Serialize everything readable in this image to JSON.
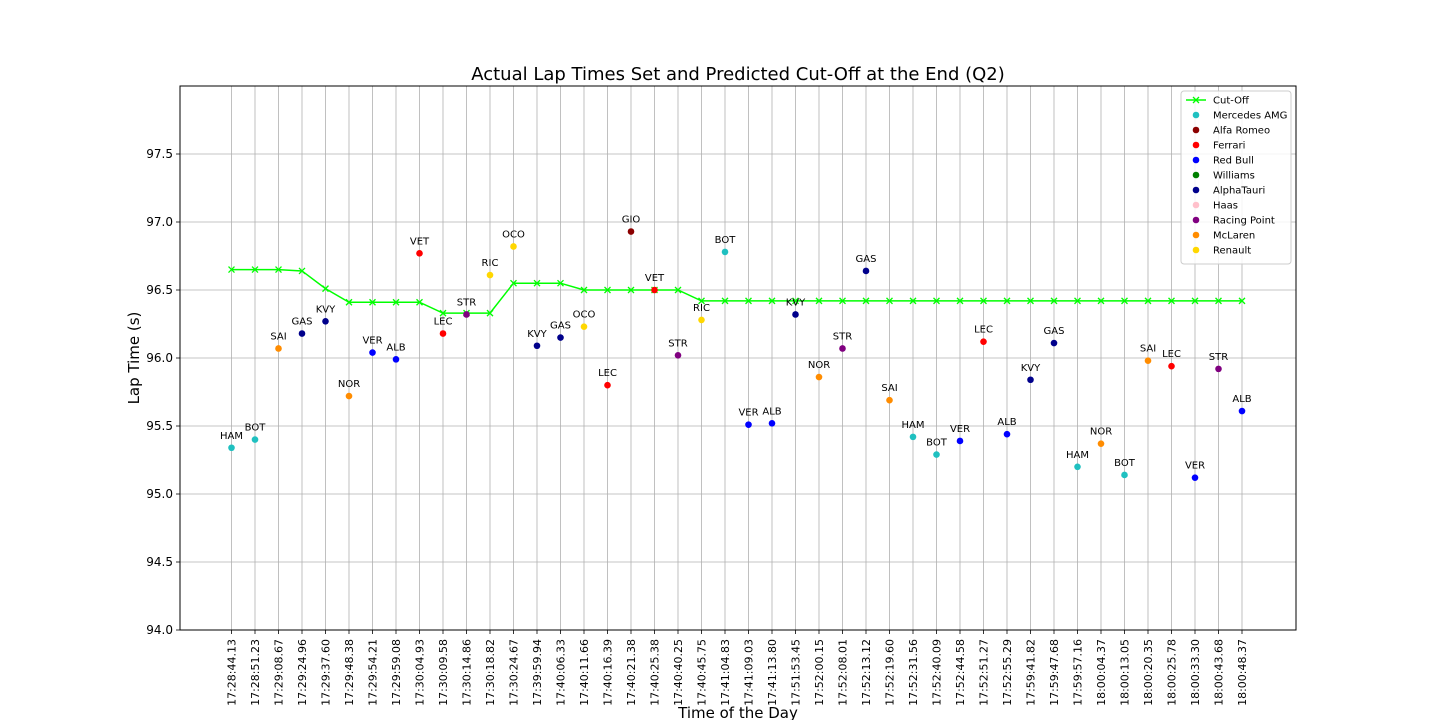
{
  "chart_data": {
    "type": "scatter",
    "title": "Actual Lap Times Set and Predicted Cut-Off at the End (Q2)",
    "xlabel": "Time of the Day",
    "ylabel": "Lap Time (s)",
    "ylim": [
      94.0,
      98.0
    ],
    "yticks": [
      "94.0",
      "94.5",
      "95.0",
      "95.5",
      "96.0",
      "96.5",
      "97.0",
      "97.5"
    ],
    "grid": true,
    "legend_position": "top-right",
    "categories": [
      "17:28:44.13",
      "17:28:51.23",
      "17:29:08.67",
      "17:29:24.96",
      "17:29:37.60",
      "17:29:48.38",
      "17:29:54.21",
      "17:29:59.08",
      "17:30:04.93",
      "17:30:09.58",
      "17:30:14.86",
      "17:30:18.82",
      "17:30:24.67",
      "17:39:59.94",
      "17:40:06.33",
      "17:40:11.66",
      "17:40:16.39",
      "17:40:21.38",
      "17:40:25.38",
      "17:40:40.25",
      "17:40:45.75",
      "17:41:04.83",
      "17:41:09.03",
      "17:41:13.80",
      "17:51:53.45",
      "17:52:00.15",
      "17:52:08.01",
      "17:52:13.12",
      "17:52:19.60",
      "17:52:31.56",
      "17:52:40.09",
      "17:52:44.58",
      "17:52:51.27",
      "17:52:55.29",
      "17:59:41.82",
      "17:59:47.68",
      "17:59:57.16",
      "18:00:04.37",
      "18:00:13.05",
      "18:00:20.35",
      "18:00:25.78",
      "18:00:33.30",
      "18:00:43.68",
      "18:00:48.37"
    ],
    "cutoff": {
      "name": "Cut-Off",
      "color": "#00ff00",
      "values": [
        96.65,
        96.65,
        96.65,
        96.64,
        96.51,
        96.41,
        96.41,
        96.41,
        96.41,
        96.33,
        96.33,
        96.33,
        96.55,
        96.55,
        96.55,
        96.5,
        96.5,
        96.5,
        96.5,
        96.5,
        96.42,
        96.42,
        96.42,
        96.42,
        96.42,
        96.42,
        96.42,
        96.42,
        96.42,
        96.42,
        96.42,
        96.42,
        96.42,
        96.42,
        96.42,
        96.42,
        96.42,
        96.42,
        96.42,
        96.42,
        96.42,
        96.42,
        96.42,
        96.42
      ]
    },
    "teams": [
      {
        "name": "Mercedes AMG",
        "color": "#1fc0c0"
      },
      {
        "name": "Alfa Romeo",
        "color": "#8b0000"
      },
      {
        "name": "Ferrari",
        "color": "#ff0000"
      },
      {
        "name": "Red Bull",
        "color": "#0000ff"
      },
      {
        "name": "Williams",
        "color": "#008000"
      },
      {
        "name": "AlphaTauri",
        "color": "#00008b"
      },
      {
        "name": "Haas",
        "color": "#ffc0cb"
      },
      {
        "name": "Racing Point",
        "color": "#800080"
      },
      {
        "name": "McLaren",
        "color": "#ff8c00"
      },
      {
        "name": "Renault",
        "color": "#ffd700"
      }
    ],
    "laps": [
      {
        "driver": "HAM",
        "team": "Mercedes AMG",
        "value": 95.34
      },
      {
        "driver": "BOT",
        "team": "Mercedes AMG",
        "value": 95.4
      },
      {
        "driver": "SAI",
        "team": "McLaren",
        "value": 96.07
      },
      {
        "driver": "GAS",
        "team": "AlphaTauri",
        "value": 96.18
      },
      {
        "driver": "KVY",
        "team": "AlphaTauri",
        "value": 96.27
      },
      {
        "driver": "NOR",
        "team": "McLaren",
        "value": 95.72
      },
      {
        "driver": "VER",
        "team": "Red Bull",
        "value": 96.04
      },
      {
        "driver": "ALB",
        "team": "Red Bull",
        "value": 95.99
      },
      {
        "driver": "VET",
        "team": "Ferrari",
        "value": 96.77
      },
      {
        "driver": "LEC",
        "team": "Ferrari",
        "value": 96.18
      },
      {
        "driver": "STR",
        "team": "Racing Point",
        "value": 96.32
      },
      {
        "driver": "RIC",
        "team": "Renault",
        "value": 96.61
      },
      {
        "driver": "OCO",
        "team": "Renault",
        "value": 96.82
      },
      {
        "driver": "KVY",
        "team": "AlphaTauri",
        "value": 96.09
      },
      {
        "driver": "GAS",
        "team": "AlphaTauri",
        "value": 96.15
      },
      {
        "driver": "OCO",
        "team": "Renault",
        "value": 96.23
      },
      {
        "driver": "LEC",
        "team": "Ferrari",
        "value": 95.8
      },
      {
        "driver": "GIO",
        "team": "Alfa Romeo",
        "value": 96.93
      },
      {
        "driver": "VET",
        "team": "Ferrari",
        "value": 96.5
      },
      {
        "driver": "STR",
        "team": "Racing Point",
        "value": 96.02
      },
      {
        "driver": "RIC",
        "team": "Renault",
        "value": 96.28
      },
      {
        "driver": "BOT",
        "team": "Mercedes AMG",
        "value": 96.78
      },
      {
        "driver": "VER",
        "team": "Red Bull",
        "value": 95.51
      },
      {
        "driver": "ALB",
        "team": "Red Bull",
        "value": 95.52
      },
      {
        "driver": "KVY",
        "team": "AlphaTauri",
        "value": 96.32
      },
      {
        "driver": "NOR",
        "team": "McLaren",
        "value": 95.86
      },
      {
        "driver": "STR",
        "team": "Racing Point",
        "value": 96.07
      },
      {
        "driver": "GAS",
        "team": "AlphaTauri",
        "value": 96.64
      },
      {
        "driver": "SAI",
        "team": "McLaren",
        "value": 95.69
      },
      {
        "driver": "HAM",
        "team": "Mercedes AMG",
        "value": 95.42
      },
      {
        "driver": "BOT",
        "team": "Mercedes AMG",
        "value": 95.29
      },
      {
        "driver": "VER",
        "team": "Red Bull",
        "value": 95.39
      },
      {
        "driver": "LEC",
        "team": "Ferrari",
        "value": 96.12
      },
      {
        "driver": "ALB",
        "team": "Red Bull",
        "value": 95.44
      },
      {
        "driver": "KVY",
        "team": "AlphaTauri",
        "value": 95.84
      },
      {
        "driver": "GAS",
        "team": "AlphaTauri",
        "value": 96.11
      },
      {
        "driver": "HAM",
        "team": "Mercedes AMG",
        "value": 95.2
      },
      {
        "driver": "NOR",
        "team": "McLaren",
        "value": 95.37
      },
      {
        "driver": "BOT",
        "team": "Mercedes AMG",
        "value": 95.14
      },
      {
        "driver": "SAI",
        "team": "McLaren",
        "value": 95.98
      },
      {
        "driver": "LEC",
        "team": "Ferrari",
        "value": 95.94
      },
      {
        "driver": "VER",
        "team": "Red Bull",
        "value": 95.12
      },
      {
        "driver": "STR",
        "team": "Racing Point",
        "value": 95.92
      },
      {
        "driver": "ALB",
        "team": "Red Bull",
        "value": 95.61
      }
    ]
  }
}
